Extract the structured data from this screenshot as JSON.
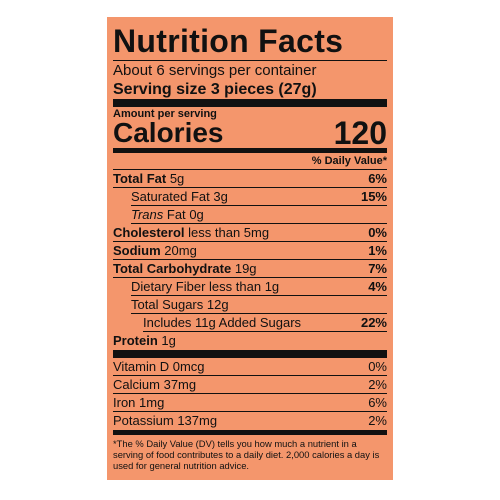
{
  "title": "Nutrition Facts",
  "servings_per_container": "About 6 servings per container",
  "serving_size": "Serving size 3 pieces (27g)",
  "amount_per_serving": "Amount per serving",
  "calories_label": "Calories",
  "calories": "120",
  "daily_value_header": "% Daily Value*",
  "nutrients": [
    {
      "name": "Total Fat",
      "amount": "5g",
      "dv": "6%"
    },
    {
      "name": "Saturated Fat",
      "amount": "3g",
      "dv": "15%"
    },
    {
      "italic": "Trans",
      "name": "Fat",
      "amount": "0g"
    },
    {
      "name": "Cholesterol",
      "amount": "less than 5mg",
      "dv": "0%"
    },
    {
      "name": "Sodium",
      "amount": "20mg",
      "dv": "1%"
    },
    {
      "name": "Total Carbohydrate",
      "amount": "19g",
      "dv": "7%"
    },
    {
      "name": "Dietary Fiber",
      "amount": "less than 1g",
      "dv": "4%"
    },
    {
      "name": "Total Sugars",
      "amount": "12g"
    },
    {
      "name": "Includes 11g Added Sugars",
      "dv": "22%"
    },
    {
      "name": "Protein",
      "amount": "1g"
    }
  ],
  "vitamins": [
    {
      "name": "Vitamin D",
      "amount": "0mcg",
      "dv": "0%"
    },
    {
      "name": "Calcium",
      "amount": "37mg",
      "dv": "2%"
    },
    {
      "name": "Iron",
      "amount": "1mg",
      "dv": "6%"
    },
    {
      "name": "Potassium",
      "amount": "137mg",
      "dv": "2%"
    }
  ],
  "footnote": "*The % Daily Value (DV) tells you how much a nutrient in a serving of food contributes to a daily diet. 2,000 calories a day is used for general nutrition advice."
}
